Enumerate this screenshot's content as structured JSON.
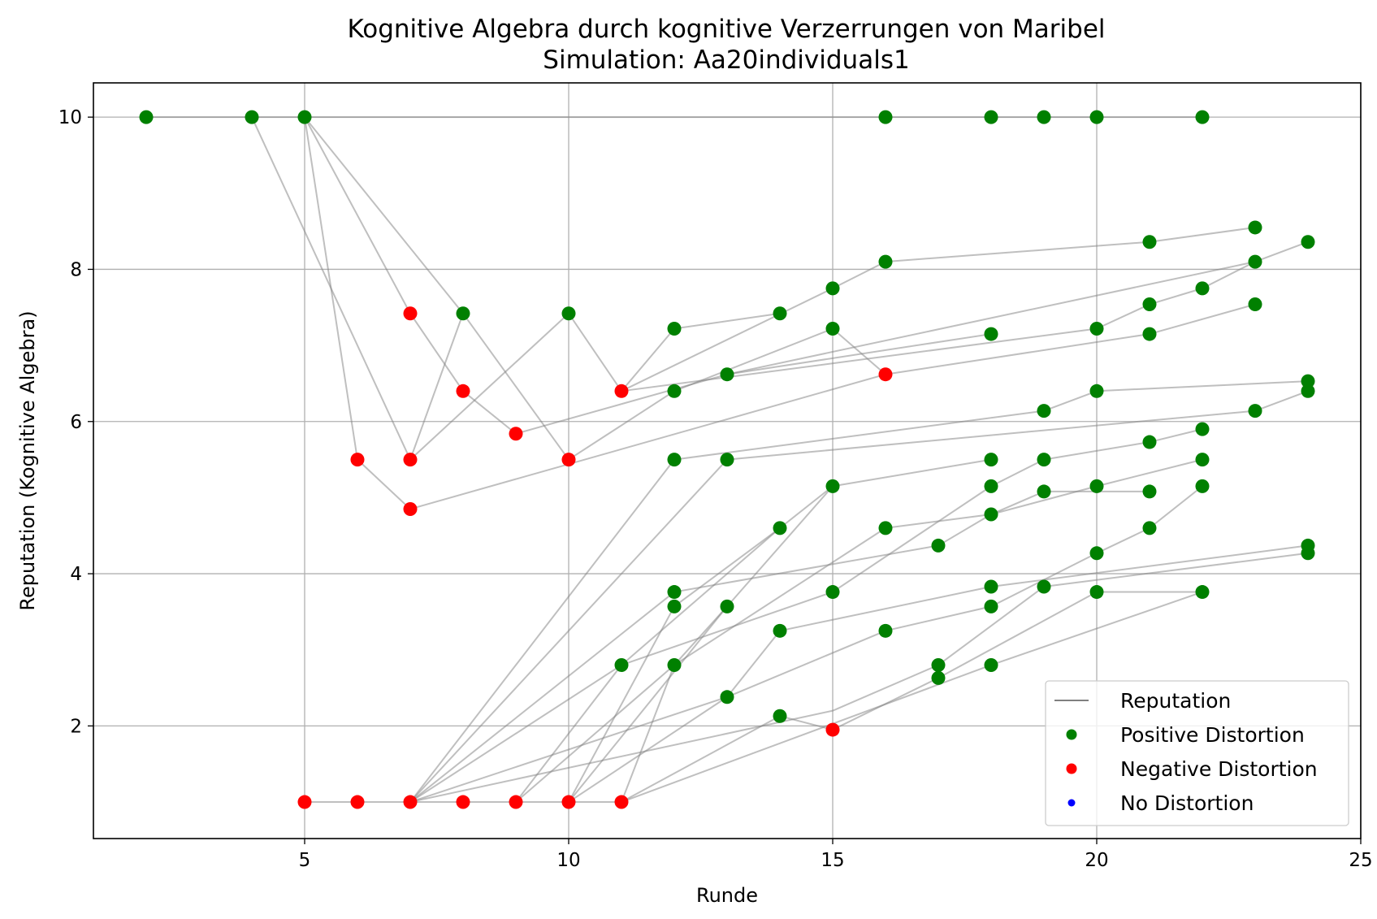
{
  "chart_data": {
    "type": "scatter",
    "title": "Kognitive Algebra durch kognitive Verzerrungen von Maribel",
    "subtitle": "Simulation: Aa20individuals1",
    "xlabel": "Runde",
    "ylabel": "Reputation (Kognitive Algebra)",
    "xlim": [
      1,
      25
    ],
    "ylim": [
      0.52,
      10.45
    ],
    "xticks": [
      5,
      10,
      15,
      20,
      25
    ],
    "yticks": [
      2,
      4,
      6,
      8,
      10
    ],
    "grid": true,
    "legend_position": "bottom-right",
    "legend": [
      {
        "label": "Reputation",
        "kind": "line",
        "color": "#808080"
      },
      {
        "label": "Positive Distortion",
        "kind": "marker",
        "color": "#008000"
      },
      {
        "label": "Negative Distortion",
        "kind": "marker",
        "color": "#ff0000"
      },
      {
        "label": "No Distortion",
        "kind": "marker",
        "color": "#0000ff"
      }
    ],
    "segments": [
      [
        [
          2,
          10
        ],
        [
          4,
          10
        ]
      ],
      [
        [
          4,
          10
        ],
        [
          5,
          10
        ]
      ],
      [
        [
          5,
          10
        ],
        [
          16,
          10
        ]
      ],
      [
        [
          16,
          10
        ],
        [
          22,
          10
        ]
      ],
      [
        [
          4,
          10
        ],
        [
          7,
          5.5
        ]
      ],
      [
        [
          5,
          10
        ],
        [
          6,
          5.5
        ]
      ],
      [
        [
          6,
          5.5
        ],
        [
          7,
          4.85
        ]
      ],
      [
        [
          7,
          4.85
        ],
        [
          16,
          6.62
        ]
      ],
      [
        [
          5,
          10
        ],
        [
          7,
          7.42
        ]
      ],
      [
        [
          7,
          7.42
        ],
        [
          8,
          6.4
        ]
      ],
      [
        [
          8,
          6.4
        ],
        [
          9,
          5.84
        ]
      ],
      [
        [
          9,
          5.84
        ],
        [
          13,
          6.62
        ]
      ],
      [
        [
          13,
          6.62
        ],
        [
          23,
          8.1
        ]
      ],
      [
        [
          5,
          10
        ],
        [
          8,
          7.42
        ]
      ],
      [
        [
          8,
          7.42
        ],
        [
          10,
          5.5
        ]
      ],
      [
        [
          10,
          5.5
        ],
        [
          12,
          6.4
        ]
      ],
      [
        [
          12,
          6.4
        ],
        [
          15,
          7.22
        ]
      ],
      [
        [
          15,
          7.22
        ],
        [
          16,
          6.62
        ]
      ],
      [
        [
          16,
          6.62
        ],
        [
          21,
          7.15
        ]
      ],
      [
        [
          21,
          7.15
        ],
        [
          23,
          7.54
        ]
      ],
      [
        [
          7,
          5.5
        ],
        [
          8,
          7.42
        ]
      ],
      [
        [
          7,
          5.5
        ],
        [
          10,
          7.42
        ]
      ],
      [
        [
          10,
          7.42
        ],
        [
          11,
          6.4
        ]
      ],
      [
        [
          11,
          6.4
        ],
        [
          12,
          7.22
        ]
      ],
      [
        [
          12,
          7.22
        ],
        [
          14,
          7.42
        ]
      ],
      [
        [
          11,
          6.4
        ],
        [
          20,
          7.22
        ]
      ],
      [
        [
          20,
          7.22
        ],
        [
          21,
          7.54
        ]
      ],
      [
        [
          21,
          7.54
        ],
        [
          22,
          7.75
        ]
      ],
      [
        [
          22,
          7.75
        ],
        [
          23,
          8.1
        ]
      ],
      [
        [
          23,
          8.1
        ],
        [
          24,
          8.36
        ]
      ],
      [
        [
          11,
          6.4
        ],
        [
          15,
          7.75
        ]
      ],
      [
        [
          15,
          7.75
        ],
        [
          16,
          8.1
        ]
      ],
      [
        [
          16,
          8.1
        ],
        [
          21,
          8.36
        ]
      ],
      [
        [
          21,
          8.36
        ],
        [
          23,
          8.55
        ]
      ],
      [
        [
          13,
          6.62
        ],
        [
          18,
          7.15
        ]
      ],
      [
        [
          7,
          1
        ],
        [
          12,
          5.5
        ]
      ],
      [
        [
          12,
          5.5
        ],
        [
          19,
          6.14
        ]
      ],
      [
        [
          19,
          6.14
        ],
        [
          20,
          6.4
        ]
      ],
      [
        [
          20,
          6.4
        ],
        [
          24,
          6.53
        ]
      ],
      [
        [
          7,
          1
        ],
        [
          13,
          5.5
        ]
      ],
      [
        [
          13,
          5.5
        ],
        [
          23,
          6.14
        ]
      ],
      [
        [
          23,
          6.14
        ],
        [
          24,
          6.4
        ]
      ],
      [
        [
          5,
          1
        ],
        [
          11,
          1
        ]
      ],
      [
        [
          9,
          1
        ],
        [
          11,
          2.8
        ]
      ],
      [
        [
          11,
          2.8
        ],
        [
          14,
          4.6
        ]
      ],
      [
        [
          14,
          4.6
        ],
        [
          15,
          5.15
        ]
      ],
      [
        [
          15,
          5.15
        ],
        [
          18,
          5.5
        ]
      ],
      [
        [
          10,
          1
        ],
        [
          12,
          3.57
        ]
      ],
      [
        [
          12,
          3.57
        ],
        [
          14,
          4.6
        ]
      ],
      [
        [
          7,
          1
        ],
        [
          12,
          3.76
        ]
      ],
      [
        [
          12,
          3.76
        ],
        [
          17,
          4.37
        ]
      ],
      [
        [
          17,
          4.37
        ],
        [
          18,
          4.78
        ]
      ],
      [
        [
          18,
          4.78
        ],
        [
          19,
          5.08
        ]
      ],
      [
        [
          19,
          5.08
        ],
        [
          21,
          5.08
        ]
      ],
      [
        [
          7,
          1
        ],
        [
          11,
          2.8
        ]
      ],
      [
        [
          11,
          2.8
        ],
        [
          15,
          3.76
        ]
      ],
      [
        [
          15,
          3.76
        ],
        [
          18,
          5.15
        ]
      ],
      [
        [
          18,
          5.15
        ],
        [
          19,
          5.5
        ]
      ],
      [
        [
          19,
          5.5
        ],
        [
          21,
          5.73
        ]
      ],
      [
        [
          21,
          5.73
        ],
        [
          22,
          5.9
        ]
      ],
      [
        [
          11,
          1
        ],
        [
          12,
          2.8
        ]
      ],
      [
        [
          12,
          2.8
        ],
        [
          16,
          4.6
        ]
      ],
      [
        [
          16,
          4.6
        ],
        [
          18,
          4.78
        ]
      ],
      [
        [
          18,
          4.78
        ],
        [
          20,
          5.15
        ]
      ],
      [
        [
          20,
          5.15
        ],
        [
          22,
          5.5
        ]
      ],
      [
        [
          9,
          1
        ],
        [
          12,
          2.8
        ]
      ],
      [
        [
          12,
          2.8
        ],
        [
          13,
          3.57
        ]
      ],
      [
        [
          13,
          3.57
        ],
        [
          15,
          5.15
        ]
      ],
      [
        [
          10,
          1
        ],
        [
          13,
          3.57
        ]
      ],
      [
        [
          7,
          1
        ],
        [
          13,
          2.38
        ]
      ],
      [
        [
          13,
          2.38
        ],
        [
          14,
          3.25
        ]
      ],
      [
        [
          14,
          3.25
        ],
        [
          18,
          3.83
        ]
      ],
      [
        [
          18,
          3.83
        ],
        [
          24,
          4.37
        ]
      ],
      [
        [
          10,
          1
        ],
        [
          13,
          2.38
        ]
      ],
      [
        [
          13,
          2.38
        ],
        [
          16,
          3.25
        ]
      ],
      [
        [
          16,
          3.25
        ],
        [
          18,
          3.57
        ]
      ],
      [
        [
          18,
          3.57
        ],
        [
          20,
          4.27
        ]
      ],
      [
        [
          20,
          4.27
        ],
        [
          21,
          4.6
        ]
      ],
      [
        [
          21,
          4.6
        ],
        [
          22,
          5.15
        ]
      ],
      [
        [
          7,
          1
        ],
        [
          15,
          2.2
        ]
      ],
      [
        [
          15,
          2.2
        ],
        [
          17,
          2.8
        ]
      ],
      [
        [
          17,
          2.8
        ],
        [
          19,
          3.83
        ]
      ],
      [
        [
          19,
          3.83
        ],
        [
          24,
          4.27
        ]
      ],
      [
        [
          11,
          1
        ],
        [
          14,
          2.13
        ]
      ],
      [
        [
          14,
          2.13
        ],
        [
          15,
          1.95
        ]
      ],
      [
        [
          15,
          1.95
        ],
        [
          17,
          2.63
        ]
      ],
      [
        [
          17,
          2.63
        ],
        [
          20,
          3.76
        ]
      ],
      [
        [
          20,
          3.76
        ],
        [
          22,
          3.76
        ]
      ],
      [
        [
          11,
          1
        ],
        [
          18,
          2.8
        ]
      ],
      [
        [
          18,
          2.8
        ],
        [
          22,
          3.76
        ]
      ]
    ],
    "series": [
      {
        "name": "Positive Distortion",
        "color": "#008000",
        "points": [
          [
            2,
            10
          ],
          [
            4,
            10
          ],
          [
            5,
            10
          ],
          [
            16,
            10
          ],
          [
            18,
            10
          ],
          [
            19,
            10
          ],
          [
            20,
            10
          ],
          [
            22,
            10
          ],
          [
            23,
            8.55
          ],
          [
            21,
            8.36
          ],
          [
            24,
            8.36
          ],
          [
            16,
            8.1
          ],
          [
            23,
            8.1
          ],
          [
            15,
            7.75
          ],
          [
            22,
            7.75
          ],
          [
            21,
            7.54
          ],
          [
            23,
            7.54
          ],
          [
            8,
            7.42
          ],
          [
            10,
            7.42
          ],
          [
            14,
            7.42
          ],
          [
            12,
            7.22
          ],
          [
            15,
            7.22
          ],
          [
            20,
            7.22
          ],
          [
            18,
            7.15
          ],
          [
            21,
            7.15
          ],
          [
            13,
            6.62
          ],
          [
            24,
            6.53
          ],
          [
            12,
            6.4
          ],
          [
            20,
            6.4
          ],
          [
            24,
            6.4
          ],
          [
            19,
            6.14
          ],
          [
            23,
            6.14
          ],
          [
            22,
            5.9
          ],
          [
            21,
            5.73
          ],
          [
            12,
            5.5
          ],
          [
            13,
            5.5
          ],
          [
            18,
            5.5
          ],
          [
            19,
            5.5
          ],
          [
            22,
            5.5
          ],
          [
            15,
            5.15
          ],
          [
            18,
            5.15
          ],
          [
            20,
            5.15
          ],
          [
            22,
            5.15
          ],
          [
            19,
            5.08
          ],
          [
            21,
            5.08
          ],
          [
            18,
            4.78
          ],
          [
            14,
            4.6
          ],
          [
            16,
            4.6
          ],
          [
            21,
            4.6
          ],
          [
            17,
            4.37
          ],
          [
            24,
            4.37
          ],
          [
            20,
            4.27
          ],
          [
            24,
            4.27
          ],
          [
            18,
            3.83
          ],
          [
            19,
            3.83
          ],
          [
            12,
            3.76
          ],
          [
            15,
            3.76
          ],
          [
            20,
            3.76
          ],
          [
            22,
            3.76
          ],
          [
            12,
            3.57
          ],
          [
            13,
            3.57
          ],
          [
            18,
            3.57
          ],
          [
            14,
            3.25
          ],
          [
            16,
            3.25
          ],
          [
            11,
            2.8
          ],
          [
            12,
            2.8
          ],
          [
            17,
            2.8
          ],
          [
            18,
            2.8
          ],
          [
            17,
            2.63
          ],
          [
            13,
            2.38
          ],
          [
            14,
            2.13
          ]
        ]
      },
      {
        "name": "Negative Distortion",
        "color": "#ff0000",
        "points": [
          [
            7,
            7.42
          ],
          [
            8,
            6.4
          ],
          [
            11,
            6.4
          ],
          [
            16,
            6.62
          ],
          [
            9,
            5.84
          ],
          [
            6,
            5.5
          ],
          [
            7,
            5.5
          ],
          [
            10,
            5.5
          ],
          [
            7,
            4.85
          ],
          [
            15,
            1.95
          ],
          [
            5,
            1
          ],
          [
            6,
            1
          ],
          [
            7,
            1
          ],
          [
            8,
            1
          ],
          [
            9,
            1
          ],
          [
            10,
            1
          ],
          [
            11,
            1
          ]
        ]
      },
      {
        "name": "No Distortion",
        "color": "#0000ff",
        "points": []
      }
    ]
  }
}
